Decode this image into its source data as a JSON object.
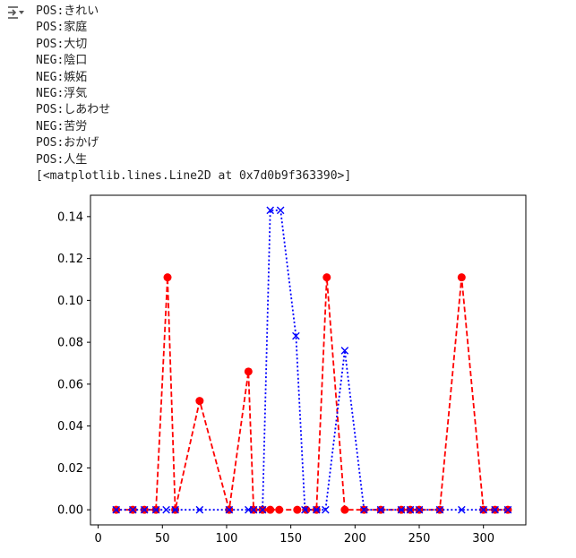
{
  "output": {
    "lines": [
      "POS:きれい",
      "POS:家庭",
      "POS:大切",
      "NEG:陰口",
      "NEG:嫉妬",
      "NEG:浮気",
      "POS:しあわせ",
      "NEG:苦労",
      "POS:おかげ",
      "POS:人生",
      "[<matplotlib.lines.Line2D at 0x7d0b9f363390>]"
    ],
    "icon": "output-collapse-icon"
  },
  "chart_data": {
    "type": "line",
    "title": "",
    "xlabel": "",
    "ylabel": "",
    "xlim": [
      -6,
      333
    ],
    "ylim": [
      -0.0072,
      0.1502
    ],
    "xticks": [
      0,
      50,
      100,
      150,
      200,
      250,
      300
    ],
    "yticks": [
      0.0,
      0.02,
      0.04,
      0.06,
      0.08,
      0.1,
      0.12,
      0.14
    ],
    "ytick_labels": [
      "0.00",
      "0.02",
      "0.04",
      "0.06",
      "0.08",
      "0.10",
      "0.12",
      "0.14"
    ],
    "grid": false,
    "legend": "none",
    "series": [
      {
        "color": "#ff0000",
        "linestyle": "dashed",
        "marker": "circle",
        "x": [
          14,
          27,
          36,
          45,
          54,
          60,
          79,
          102,
          117,
          121,
          128,
          134,
          141,
          155,
          162,
          170,
          178,
          192,
          207,
          220,
          236,
          243,
          250,
          266,
          283,
          300,
          309,
          319
        ],
        "y": [
          0,
          0,
          0,
          0,
          0.111,
          0,
          0.052,
          0,
          0.066,
          0,
          0,
          0,
          0,
          0,
          0,
          0,
          0.111,
          0,
          0,
          0,
          0,
          0,
          0,
          0,
          0.111,
          0,
          0,
          0
        ]
      },
      {
        "color": "#0000ff",
        "linestyle": "dotted",
        "marker": "x",
        "x": [
          14,
          27,
          36,
          45,
          53,
          60,
          79,
          102,
          117,
          121,
          128,
          134,
          142,
          154,
          161,
          170,
          177,
          192,
          207,
          220,
          236,
          243,
          250,
          266,
          283,
          300,
          309,
          319
        ],
        "y": [
          0,
          0,
          0,
          0,
          0,
          0,
          0,
          0,
          0,
          0,
          0,
          0.143,
          0.143,
          0.083,
          0,
          0,
          0,
          0.076,
          0,
          0,
          0,
          0,
          0,
          0,
          0,
          0,
          0,
          0
        ]
      }
    ]
  }
}
